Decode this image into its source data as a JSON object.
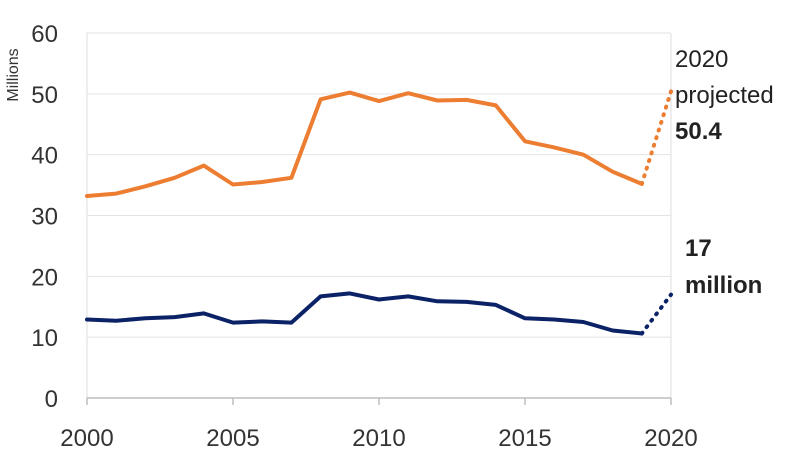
{
  "chart_data": {
    "type": "line",
    "title": "",
    "xlabel": "",
    "ylabel": "Millions",
    "xlim": [
      2000,
      2020
    ],
    "ylim": [
      0,
      60
    ],
    "x_ticks": [
      2000,
      2005,
      2010,
      2015,
      2020
    ],
    "y_ticks": [
      0,
      10,
      20,
      30,
      40,
      50,
      60
    ],
    "grid": "horizontal",
    "legend": "none",
    "series": [
      {
        "color": "#ed7d31",
        "x": [
          2000,
          2001,
          2002,
          2003,
          2004,
          2005,
          2006,
          2007,
          2008,
          2009,
          2010,
          2011,
          2012,
          2013,
          2014,
          2015,
          2016,
          2017,
          2018,
          2019
        ],
        "values": [
          33.2,
          33.6,
          34.8,
          36.2,
          38.2,
          35.1,
          35.5,
          36.2,
          49.1,
          50.2,
          48.8,
          50.1,
          48.9,
          49.0,
          48.1,
          42.2,
          41.2,
          40.0,
          37.2,
          35.2
        ],
        "projection": {
          "x": [
            2019,
            2020
          ],
          "values": [
            35.2,
            50.4
          ]
        }
      },
      {
        "color": "#0b2266",
        "x": [
          2000,
          2001,
          2002,
          2003,
          2004,
          2005,
          2006,
          2007,
          2008,
          2009,
          2010,
          2011,
          2012,
          2013,
          2014,
          2015,
          2016,
          2017,
          2018,
          2019
        ],
        "values": [
          12.9,
          12.7,
          13.1,
          13.3,
          13.9,
          12.4,
          12.6,
          12.4,
          16.7,
          17.2,
          16.2,
          16.7,
          15.9,
          15.8,
          15.3,
          13.1,
          12.9,
          12.5,
          11.1,
          10.6
        ],
        "projection": {
          "x": [
            2019,
            2020
          ],
          "values": [
            10.6,
            17.0
          ]
        }
      }
    ],
    "annotations": {
      "top_line1": "2020",
      "top_line2": "projected",
      "top_value": "50.4",
      "bottom_line1": "17",
      "bottom_line2": "million"
    }
  }
}
